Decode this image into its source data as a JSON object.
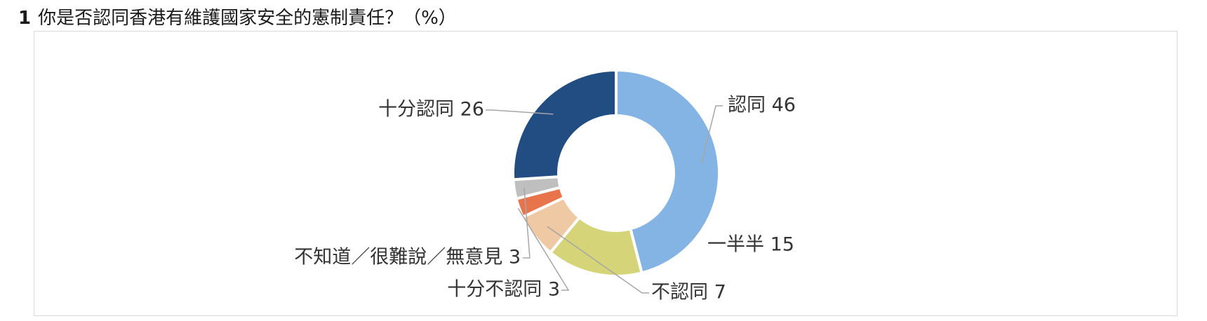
{
  "title": {
    "number": "1",
    "text": "你是否認同香港有維護國家安全的憲制責任？（%）"
  },
  "chart_data": {
    "type": "pie",
    "donut": true,
    "slices": [
      {
        "label": "認同",
        "value": 46,
        "color": "#84b4e3"
      },
      {
        "label": "一半半",
        "value": 15,
        "color": "#d6d479"
      },
      {
        "label": "不認同",
        "value": 7,
        "color": "#efc8a4"
      },
      {
        "label": "十分不認同",
        "value": 3,
        "color": "#e8744b"
      },
      {
        "label": "不知道／很難說／無意見",
        "value": 3,
        "color": "#bfbfbf"
      },
      {
        "label": "十分認同",
        "value": 26,
        "color": "#214d82"
      }
    ],
    "start_angle": "top, clockwise",
    "legend": "none (data labels with leader lines)"
  }
}
